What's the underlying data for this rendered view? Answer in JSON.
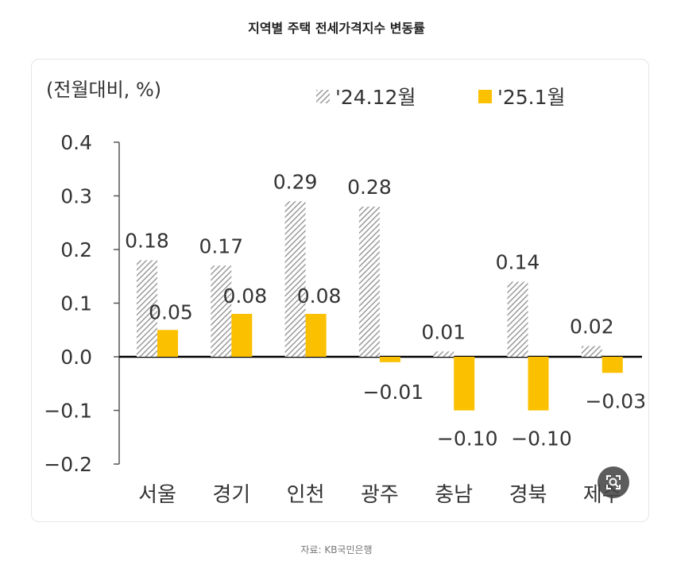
{
  "page": {
    "title": "지역별 주택 전세가격지수 변동률",
    "source": "자료: KB국민은행"
  },
  "zoom_button": {
    "icon": "zoom-icon"
  },
  "colors": {
    "series_2412": "#a9a9a9",
    "series_2501": "#fbc000",
    "axis": "#000000",
    "text": "#333333"
  },
  "chart_data": {
    "type": "bar",
    "unit_label": "(전월대비, %)",
    "categories": [
      "서울",
      "경기",
      "인천",
      "광주",
      "충남",
      "경북",
      "제주"
    ],
    "series": [
      {
        "name": "'24.12월",
        "pattern": "hatched",
        "values": [
          0.18,
          0.17,
          0.29,
          0.28,
          0.01,
          0.14,
          0.02
        ],
        "labels": [
          "0.18",
          "0.17",
          "0.29",
          "0.28",
          "0.01",
          "0.14",
          "0.02"
        ]
      },
      {
        "name": "'25.1월",
        "pattern": "solid",
        "values": [
          0.05,
          0.08,
          0.08,
          -0.01,
          -0.1,
          -0.1,
          -0.03
        ],
        "labels": [
          "0.05",
          "0.08",
          "0.08",
          "−0.01",
          "−0.10",
          "−0.10",
          "−0.03"
        ]
      }
    ],
    "y_ticks": [
      "0.4",
      "0.3",
      "0.2",
      "0.1",
      "0.0",
      "−0.1",
      "−0.2"
    ],
    "y_tick_values": [
      0.4,
      0.3,
      0.2,
      0.1,
      0.0,
      -0.1,
      -0.2
    ],
    "ylim": [
      -0.2,
      0.4
    ],
    "grid": false,
    "legend_position": "top-right"
  }
}
